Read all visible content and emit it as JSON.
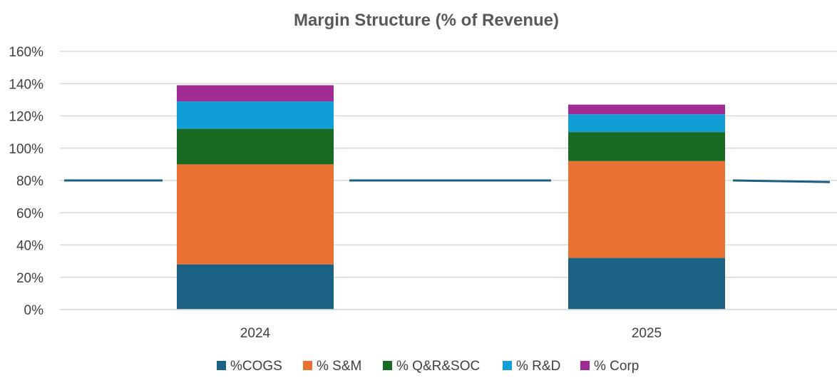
{
  "chart_data": {
    "type": "bar",
    "stacked": true,
    "title": "Margin Structure (% of Revenue)",
    "categories": [
      "2024",
      "2025"
    ],
    "ylim": [
      0,
      160
    ],
    "yticks": [
      0,
      20,
      40,
      60,
      80,
      100,
      120,
      140,
      160
    ],
    "ytick_labels": [
      "0%",
      "20%",
      "40%",
      "60%",
      "80%",
      "100%",
      "120%",
      "140%",
      "160%"
    ],
    "grid": true,
    "series": [
      {
        "name": "%COGS",
        "color": "#1a6183",
        "values": [
          28,
          32
        ]
      },
      {
        "name": "% S&M",
        "color": "#e97132",
        "values": [
          62,
          60
        ]
      },
      {
        "name": "% Q&R&SOC",
        "color": "#196b24",
        "values": [
          22,
          18
        ]
      },
      {
        "name": "% R&D",
        "color": "#0f9ed5",
        "values": [
          17,
          11
        ]
      },
      {
        "name": "% Corp",
        "color": "#a02b93",
        "values": [
          10,
          6
        ]
      }
    ],
    "reference_line": {
      "color": "#1a6183",
      "values": [
        80,
        80,
        80,
        80,
        79
      ]
    },
    "legend_position": "bottom"
  }
}
